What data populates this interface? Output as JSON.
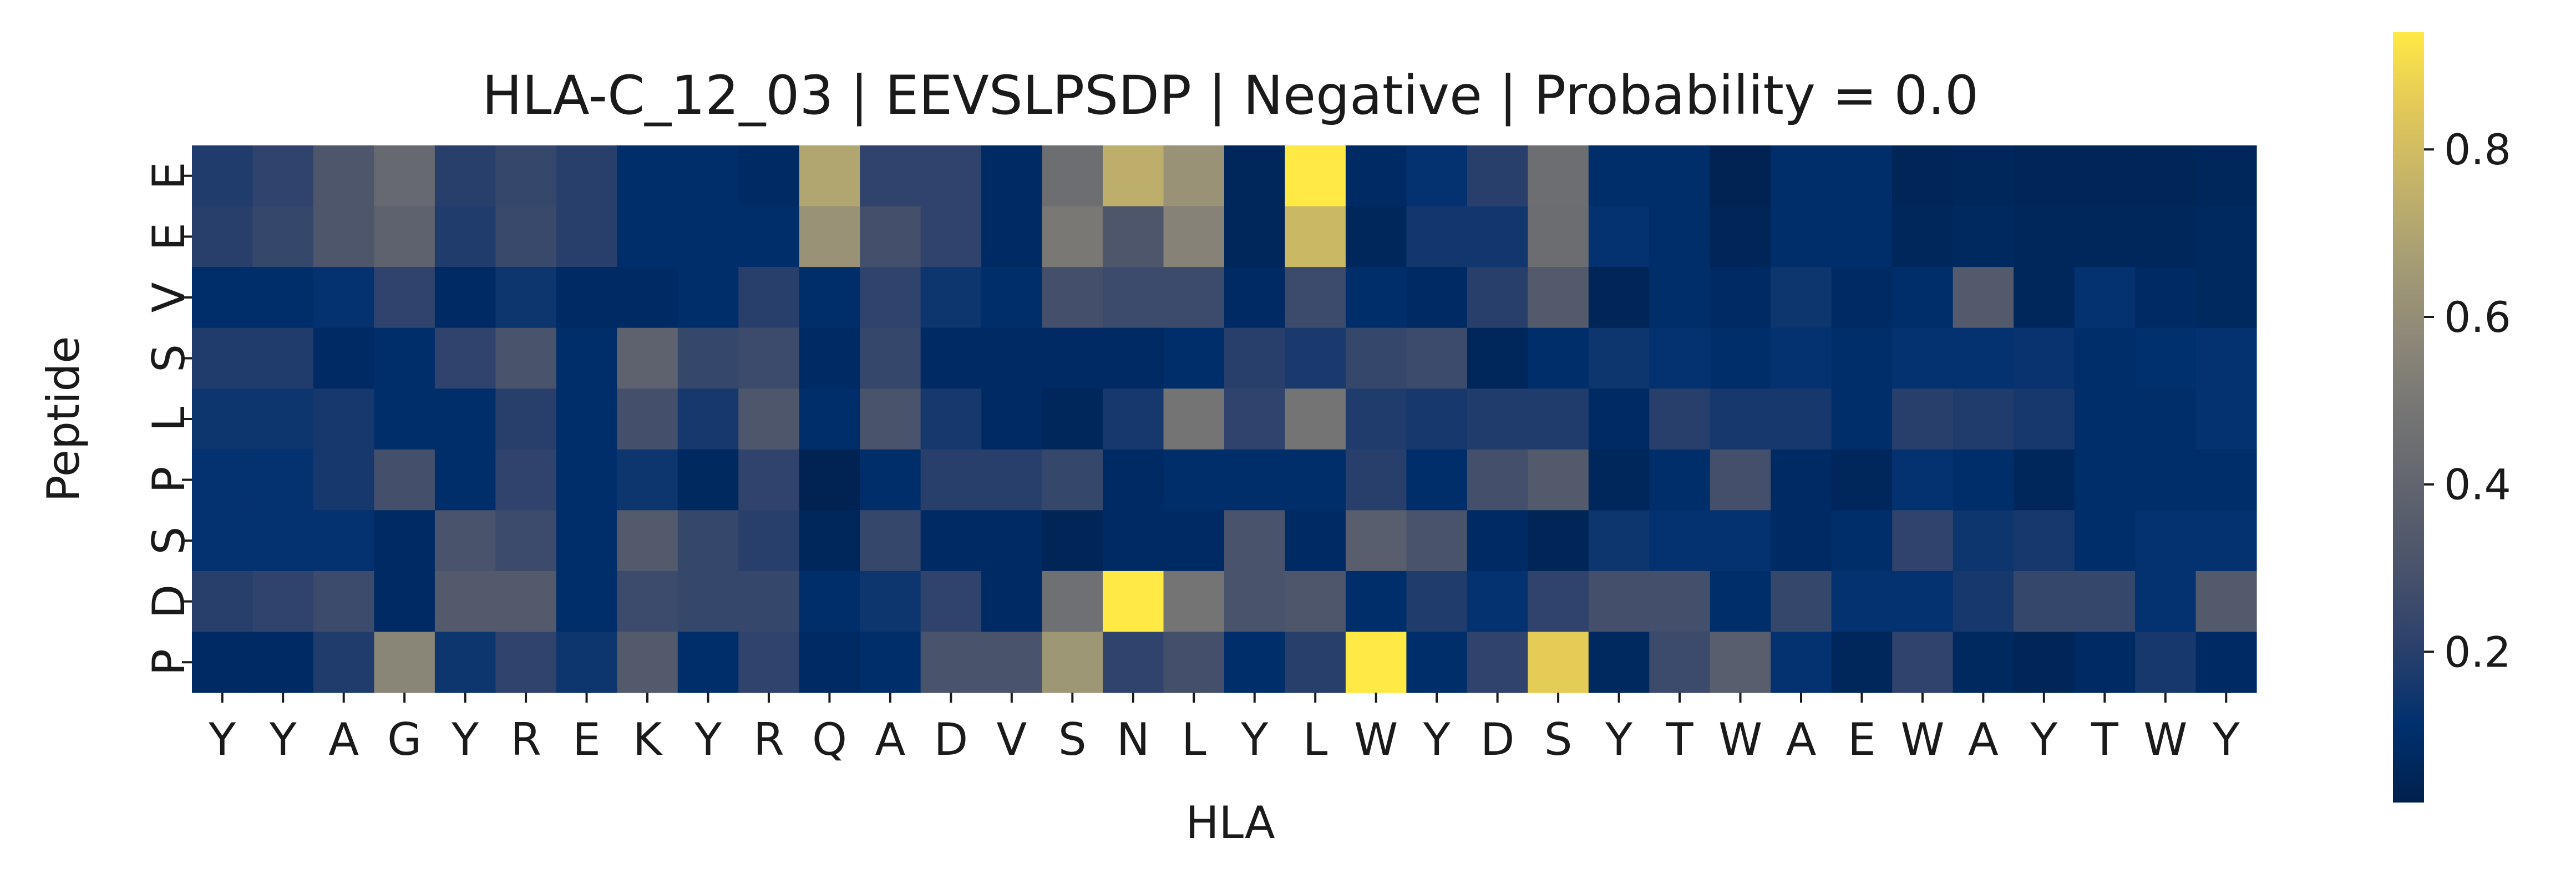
{
  "chart_data": {
    "type": "heatmap",
    "title": "HLA-C_12_03 | EEVSLPSDP | Negative | Probability = 0.0",
    "xlabel": "HLA",
    "ylabel": "Peptide",
    "x_categories": [
      "Y",
      "Y",
      "A",
      "G",
      "Y",
      "R",
      "E",
      "K",
      "Y",
      "R",
      "Q",
      "A",
      "D",
      "V",
      "S",
      "N",
      "L",
      "Y",
      "L",
      "W",
      "Y",
      "D",
      "S",
      "Y",
      "T",
      "W",
      "A",
      "E",
      "W",
      "A",
      "Y",
      "T",
      "W",
      "Y"
    ],
    "y_categories": [
      "E",
      "E",
      "V",
      "S",
      "L",
      "P",
      "S",
      "D",
      "P"
    ],
    "colormap": "cividis",
    "colorbar": {
      "min": 0.02,
      "max": 0.94,
      "ticks": [
        0.2,
        0.4,
        0.6,
        0.8
      ]
    },
    "values": [
      [
        0.18,
        0.22,
        0.32,
        0.42,
        0.2,
        0.24,
        0.2,
        0.1,
        0.1,
        0.08,
        0.7,
        0.22,
        0.22,
        0.08,
        0.45,
        0.74,
        0.62,
        0.06,
        0.94,
        0.08,
        0.12,
        0.2,
        0.45,
        0.1,
        0.1,
        0.04,
        0.1,
        0.1,
        0.05,
        0.06,
        0.05,
        0.05,
        0.05,
        0.06
      ],
      [
        0.2,
        0.24,
        0.32,
        0.38,
        0.18,
        0.25,
        0.2,
        0.1,
        0.1,
        0.1,
        0.62,
        0.28,
        0.22,
        0.08,
        0.5,
        0.32,
        0.55,
        0.06,
        0.78,
        0.06,
        0.15,
        0.15,
        0.44,
        0.12,
        0.1,
        0.05,
        0.1,
        0.1,
        0.06,
        0.07,
        0.06,
        0.06,
        0.06,
        0.07
      ],
      [
        0.1,
        0.1,
        0.12,
        0.22,
        0.08,
        0.14,
        0.08,
        0.08,
        0.1,
        0.2,
        0.1,
        0.22,
        0.14,
        0.1,
        0.28,
        0.26,
        0.26,
        0.08,
        0.26,
        0.1,
        0.08,
        0.2,
        0.34,
        0.05,
        0.1,
        0.08,
        0.14,
        0.08,
        0.1,
        0.34,
        0.06,
        0.12,
        0.08,
        0.07
      ],
      [
        0.18,
        0.18,
        0.08,
        0.1,
        0.22,
        0.3,
        0.1,
        0.38,
        0.24,
        0.26,
        0.08,
        0.24,
        0.08,
        0.08,
        0.08,
        0.08,
        0.1,
        0.2,
        0.17,
        0.24,
        0.26,
        0.06,
        0.1,
        0.14,
        0.12,
        0.1,
        0.12,
        0.1,
        0.12,
        0.12,
        0.13,
        0.1,
        0.11,
        0.12
      ],
      [
        0.14,
        0.14,
        0.16,
        0.1,
        0.1,
        0.2,
        0.1,
        0.28,
        0.16,
        0.32,
        0.1,
        0.3,
        0.16,
        0.08,
        0.06,
        0.16,
        0.48,
        0.22,
        0.48,
        0.18,
        0.16,
        0.18,
        0.18,
        0.08,
        0.2,
        0.16,
        0.16,
        0.1,
        0.2,
        0.18,
        0.16,
        0.1,
        0.1,
        0.12
      ],
      [
        0.12,
        0.12,
        0.16,
        0.28,
        0.1,
        0.22,
        0.1,
        0.14,
        0.07,
        0.22,
        0.04,
        0.1,
        0.2,
        0.2,
        0.24,
        0.08,
        0.1,
        0.1,
        0.1,
        0.2,
        0.1,
        0.28,
        0.34,
        0.06,
        0.1,
        0.28,
        0.08,
        0.06,
        0.12,
        0.1,
        0.06,
        0.1,
        0.1,
        0.1
      ],
      [
        0.12,
        0.12,
        0.12,
        0.08,
        0.3,
        0.26,
        0.1,
        0.34,
        0.24,
        0.2,
        0.06,
        0.24,
        0.08,
        0.08,
        0.05,
        0.08,
        0.08,
        0.3,
        0.08,
        0.36,
        0.3,
        0.08,
        0.05,
        0.14,
        0.12,
        0.12,
        0.08,
        0.1,
        0.22,
        0.14,
        0.16,
        0.1,
        0.12,
        0.12
      ],
      [
        0.2,
        0.22,
        0.26,
        0.08,
        0.34,
        0.34,
        0.1,
        0.26,
        0.24,
        0.24,
        0.1,
        0.14,
        0.22,
        0.08,
        0.46,
        0.94,
        0.48,
        0.3,
        0.32,
        0.1,
        0.18,
        0.12,
        0.22,
        0.28,
        0.28,
        0.1,
        0.24,
        0.12,
        0.12,
        0.16,
        0.24,
        0.24,
        0.12,
        0.34
      ],
      [
        0.08,
        0.08,
        0.18,
        0.56,
        0.14,
        0.22,
        0.14,
        0.34,
        0.1,
        0.22,
        0.08,
        0.1,
        0.3,
        0.3,
        0.64,
        0.22,
        0.28,
        0.1,
        0.2,
        0.94,
        0.1,
        0.22,
        0.86,
        0.07,
        0.26,
        0.36,
        0.12,
        0.06,
        0.22,
        0.07,
        0.05,
        0.08,
        0.16,
        0.08
      ]
    ]
  }
}
